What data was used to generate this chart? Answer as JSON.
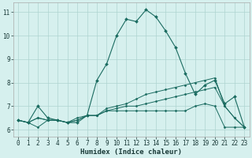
{
  "xlabel": "Humidex (Indice chaleur)",
  "ylabel": "",
  "xlim": [
    -0.5,
    23.5
  ],
  "ylim": [
    5.7,
    11.4
  ],
  "yticks": [
    6,
    7,
    8,
    9,
    10,
    11
  ],
  "xticks": [
    0,
    1,
    2,
    3,
    4,
    5,
    6,
    7,
    8,
    9,
    10,
    11,
    12,
    13,
    14,
    15,
    16,
    17,
    18,
    19,
    20,
    21,
    22,
    23
  ],
  "bg_color": "#d6f0ee",
  "grid_color": "#aed4d0",
  "line_color": "#1a6b60",
  "series": [
    [
      6.4,
      6.3,
      7.0,
      6.5,
      6.4,
      6.3,
      6.3,
      6.6,
      8.1,
      8.8,
      10.0,
      10.7,
      10.6,
      11.1,
      10.8,
      10.2,
      9.5,
      8.4,
      7.5,
      7.9,
      8.1,
      7.1,
      7.4,
      6.1
    ],
    [
      6.4,
      6.3,
      6.1,
      6.4,
      6.4,
      6.3,
      6.5,
      6.6,
      6.6,
      6.8,
      6.8,
      6.8,
      6.8,
      6.8,
      6.8,
      6.8,
      6.8,
      6.8,
      7.0,
      7.1,
      7.0,
      6.1,
      6.1,
      6.1
    ],
    [
      6.4,
      6.3,
      6.5,
      6.4,
      6.4,
      6.3,
      6.4,
      6.6,
      6.6,
      6.8,
      6.9,
      7.0,
      7.0,
      7.1,
      7.2,
      7.3,
      7.4,
      7.5,
      7.6,
      7.7,
      7.8,
      7.0,
      6.5,
      6.1
    ],
    [
      6.4,
      6.3,
      6.5,
      6.4,
      6.4,
      6.3,
      6.4,
      6.6,
      6.6,
      6.9,
      7.0,
      7.1,
      7.3,
      7.5,
      7.6,
      7.7,
      7.8,
      7.9,
      8.0,
      8.1,
      8.2,
      7.0,
      6.5,
      6.1
    ]
  ],
  "tick_fontsize": 5.5,
  "xlabel_fontsize": 6.5,
  "figwidth": 3.2,
  "figheight": 2.0,
  "dpi": 100
}
